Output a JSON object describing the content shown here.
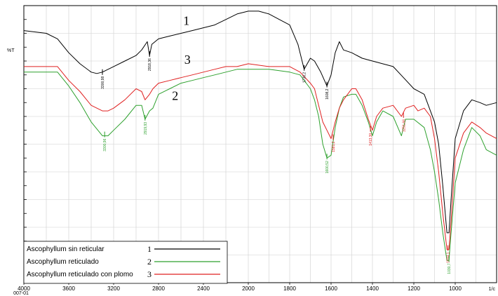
{
  "chart_data": {
    "type": "line",
    "title": "",
    "ylabel": "%T",
    "xlabel": "",
    "x_ticks": [
      4000,
      3600,
      3200,
      2800,
      2400,
      2000,
      1800,
      1600,
      1400,
      1200,
      1000
    ],
    "x_corner_label": "007-01",
    "x_end_label": "1/c",
    "xlim": [
      4000,
      800
    ],
    "ylim": [
      0,
      100
    ],
    "grid": true,
    "legend_position": "bottom-left",
    "series": [
      {
        "name": "Ascophyllum sin reticular",
        "number": "1",
        "color": "#000000",
        "points": [
          [
            4000,
            91
          ],
          [
            3800,
            90
          ],
          [
            3700,
            88
          ],
          [
            3600,
            83
          ],
          [
            3500,
            79
          ],
          [
            3400,
            76
          ],
          [
            3350,
            75.5
          ],
          [
            3300,
            76
          ],
          [
            3200,
            78
          ],
          [
            3100,
            80
          ],
          [
            3000,
            82
          ],
          [
            2950,
            84
          ],
          [
            2900,
            87
          ],
          [
            2880,
            82
          ],
          [
            2860,
            86
          ],
          [
            2800,
            88
          ],
          [
            2700,
            89
          ],
          [
            2600,
            90
          ],
          [
            2500,
            91
          ],
          [
            2400,
            92
          ],
          [
            2300,
            93
          ],
          [
            2200,
            95
          ],
          [
            2100,
            97
          ],
          [
            2000,
            98
          ],
          [
            1950,
            98
          ],
          [
            1900,
            97
          ],
          [
            1850,
            95
          ],
          [
            1800,
            93
          ],
          [
            1760,
            86
          ],
          [
            1730,
            77
          ],
          [
            1700,
            81
          ],
          [
            1680,
            80
          ],
          [
            1650,
            76
          ],
          [
            1620,
            71
          ],
          [
            1600,
            75
          ],
          [
            1580,
            83
          ],
          [
            1560,
            87
          ],
          [
            1540,
            84
          ],
          [
            1500,
            83
          ],
          [
            1450,
            81
          ],
          [
            1400,
            80
          ],
          [
            1300,
            78
          ],
          [
            1250,
            74
          ],
          [
            1200,
            70
          ],
          [
            1150,
            68
          ],
          [
            1120,
            62
          ],
          [
            1100,
            58
          ],
          [
            1080,
            50
          ],
          [
            1060,
            35
          ],
          [
            1040,
            18
          ],
          [
            1030,
            18
          ],
          [
            1020,
            30
          ],
          [
            1000,
            52
          ],
          [
            960,
            62
          ],
          [
            920,
            66
          ],
          [
            880,
            65
          ],
          [
            850,
            64
          ],
          [
            800,
            65
          ]
        ]
      },
      {
        "name": "Ascophyllum reticulado",
        "number": "2",
        "color": "#2ea12e",
        "points": [
          [
            4000,
            76
          ],
          [
            3800,
            76
          ],
          [
            3700,
            76
          ],
          [
            3600,
            71
          ],
          [
            3500,
            65
          ],
          [
            3400,
            58
          ],
          [
            3300,
            53
          ],
          [
            3250,
            53
          ],
          [
            3200,
            55
          ],
          [
            3100,
            59
          ],
          [
            3000,
            64
          ],
          [
            2950,
            64
          ],
          [
            2920,
            59
          ],
          [
            2880,
            62
          ],
          [
            2850,
            63
          ],
          [
            2800,
            68
          ],
          [
            2700,
            70
          ],
          [
            2600,
            72
          ],
          [
            2500,
            73
          ],
          [
            2400,
            74
          ],
          [
            2300,
            75
          ],
          [
            2200,
            76
          ],
          [
            2100,
            77
          ],
          [
            2000,
            77
          ],
          [
            1900,
            77
          ],
          [
            1800,
            76
          ],
          [
            1750,
            75
          ],
          [
            1700,
            70
          ],
          [
            1680,
            66
          ],
          [
            1660,
            60
          ],
          [
            1640,
            50
          ],
          [
            1620,
            45
          ],
          [
            1600,
            46
          ],
          [
            1580,
            56
          ],
          [
            1560,
            63
          ],
          [
            1540,
            67
          ],
          [
            1500,
            68
          ],
          [
            1480,
            68
          ],
          [
            1450,
            64
          ],
          [
            1420,
            58
          ],
          [
            1400,
            53
          ],
          [
            1380,
            58
          ],
          [
            1350,
            62
          ],
          [
            1300,
            60
          ],
          [
            1260,
            53
          ],
          [
            1240,
            59
          ],
          [
            1200,
            59
          ],
          [
            1150,
            56
          ],
          [
            1120,
            48
          ],
          [
            1100,
            40
          ],
          [
            1080,
            30
          ],
          [
            1060,
            18
          ],
          [
            1040,
            8
          ],
          [
            1030,
            8
          ],
          [
            1020,
            18
          ],
          [
            1000,
            36
          ],
          [
            960,
            48
          ],
          [
            920,
            56
          ],
          [
            880,
            53
          ],
          [
            850,
            48
          ],
          [
            800,
            46
          ]
        ]
      },
      {
        "name": "Ascophyllum reticulado con plomo",
        "number": "3",
        "color": "#e02020",
        "points": [
          [
            4000,
            78
          ],
          [
            3800,
            78
          ],
          [
            3700,
            78
          ],
          [
            3600,
            73
          ],
          [
            3500,
            69
          ],
          [
            3400,
            64
          ],
          [
            3300,
            62
          ],
          [
            3250,
            62
          ],
          [
            3200,
            63
          ],
          [
            3100,
            66
          ],
          [
            3000,
            70
          ],
          [
            2950,
            69
          ],
          [
            2920,
            66
          ],
          [
            2880,
            68
          ],
          [
            2850,
            70
          ],
          [
            2800,
            72
          ],
          [
            2700,
            73
          ],
          [
            2600,
            74
          ],
          [
            2500,
            75
          ],
          [
            2400,
            76
          ],
          [
            2300,
            77
          ],
          [
            2200,
            78
          ],
          [
            2100,
            78
          ],
          [
            2000,
            79
          ],
          [
            1900,
            78
          ],
          [
            1800,
            78
          ],
          [
            1750,
            76
          ],
          [
            1700,
            72
          ],
          [
            1680,
            70
          ],
          [
            1660,
            64
          ],
          [
            1640,
            58
          ],
          [
            1620,
            55
          ],
          [
            1600,
            52
          ],
          [
            1580,
            58
          ],
          [
            1560,
            63
          ],
          [
            1540,
            66
          ],
          [
            1500,
            70
          ],
          [
            1480,
            70
          ],
          [
            1450,
            66
          ],
          [
            1420,
            59
          ],
          [
            1400,
            55
          ],
          [
            1380,
            60
          ],
          [
            1350,
            63
          ],
          [
            1300,
            64
          ],
          [
            1260,
            60
          ],
          [
            1240,
            63
          ],
          [
            1200,
            64
          ],
          [
            1180,
            62
          ],
          [
            1150,
            63
          ],
          [
            1120,
            60
          ],
          [
            1100,
            52
          ],
          [
            1080,
            40
          ],
          [
            1060,
            25
          ],
          [
            1040,
            12
          ],
          [
            1030,
            12
          ],
          [
            1020,
            22
          ],
          [
            1000,
            45
          ],
          [
            960,
            54
          ],
          [
            920,
            58
          ],
          [
            880,
            56
          ],
          [
            850,
            54
          ],
          [
            800,
            52
          ]
        ]
      }
    ],
    "annotations": [
      {
        "text": "1",
        "x": 2580,
        "y": 93
      },
      {
        "text": "3",
        "x": 2570,
        "y": 79
      },
      {
        "text": "2",
        "x": 2680,
        "y": 66
      }
    ],
    "peak_labels": [
      {
        "series": 0,
        "x": 3300,
        "y": 75.5,
        "text": "3300,98"
      },
      {
        "series": 0,
        "x": 2880,
        "y": 82,
        "text": "2918,36"
      },
      {
        "series": 0,
        "x": 1730,
        "y": 77,
        "text": "1736,2"
      },
      {
        "series": 0,
        "x": 1620,
        "y": 71,
        "text": "1608,2"
      },
      {
        "series": 1,
        "x": 3280,
        "y": 53,
        "text": "3300,96"
      },
      {
        "series": 1,
        "x": 2920,
        "y": 59,
        "text": "2919,93"
      },
      {
        "series": 1,
        "x": 1620,
        "y": 45,
        "text": "1600,52"
      },
      {
        "series": 2,
        "x": 1590,
        "y": 52,
        "text": "1581,2"
      },
      {
        "series": 2,
        "x": 1410,
        "y": 55,
        "text": "1413,30"
      },
      {
        "series": 2,
        "x": 1250,
        "y": 60,
        "text": "1251,66"
      },
      {
        "series": 2,
        "x": 1035,
        "y": 12,
        "text": "1034,1"
      },
      {
        "series": 1,
        "x": 1030,
        "y": 8,
        "text": "1030,7"
      }
    ]
  }
}
